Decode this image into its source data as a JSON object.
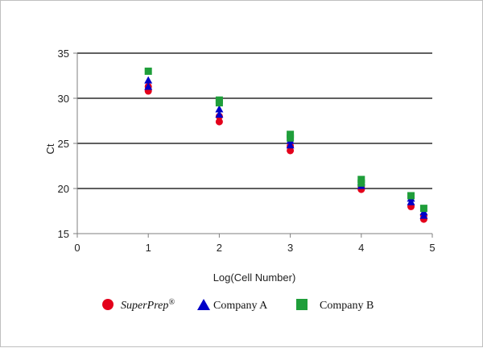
{
  "chart_data": {
    "type": "scatter",
    "xlabel": "Log(Cell Number)",
    "ylabel": "Ct",
    "xlim": [
      0,
      5
    ],
    "ylim": [
      15,
      35
    ],
    "x_ticks": [
      "0",
      "1",
      "2",
      "3",
      "4",
      "5"
    ],
    "y_ticks": [
      "15",
      "20",
      "25",
      "30",
      "35"
    ],
    "grid": "horizontal",
    "legend_position": "bottom",
    "series": [
      {
        "name": "SuperPrep",
        "name_superscript": "®",
        "marker": "circle",
        "color": "#e3001b",
        "points": [
          [
            1,
            30.8
          ],
          [
            1,
            31.3
          ],
          [
            2,
            27.4
          ],
          [
            2,
            28.0
          ],
          [
            3,
            24.2
          ],
          [
            3,
            24.7
          ],
          [
            4,
            19.9
          ],
          [
            4,
            20.2
          ],
          [
            4.7,
            18.0
          ],
          [
            4.88,
            16.6
          ],
          [
            4.88,
            17.0
          ]
        ]
      },
      {
        "name": "Company A",
        "marker": "triangle",
        "color": "#0000c8",
        "points": [
          [
            1,
            31.3
          ],
          [
            1,
            32.0
          ],
          [
            2,
            28.2
          ],
          [
            2,
            28.8
          ],
          [
            3,
            24.8
          ],
          [
            3,
            25.3
          ],
          [
            4,
            20.3
          ],
          [
            4,
            20.7
          ],
          [
            4.7,
            18.5
          ],
          [
            4.7,
            18.9
          ],
          [
            4.88,
            17.0
          ],
          [
            4.88,
            17.4
          ]
        ]
      },
      {
        "name": "Company B",
        "marker": "square",
        "color": "#1f9e3a",
        "points": [
          [
            1,
            33.0
          ],
          [
            2,
            29.5
          ],
          [
            2,
            29.8
          ],
          [
            3,
            25.6
          ],
          [
            3,
            26.0
          ],
          [
            4,
            20.6
          ],
          [
            4,
            21.0
          ],
          [
            4.7,
            19.2
          ],
          [
            4.88,
            17.8
          ]
        ]
      }
    ]
  }
}
